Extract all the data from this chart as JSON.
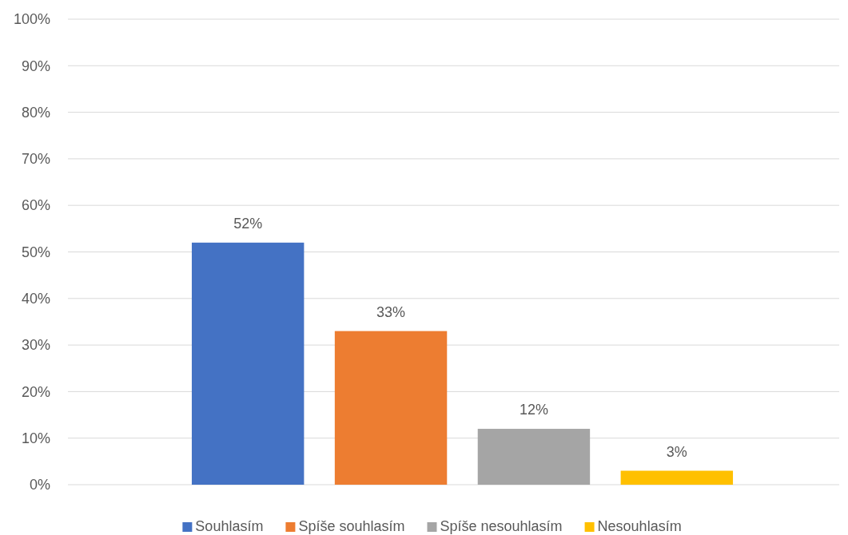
{
  "chart_data": {
    "type": "bar",
    "categories": [
      null
    ],
    "series": [
      {
        "name": "Souhlasím",
        "color": "#4472c4",
        "values": [
          52
        ],
        "value_labels": [
          "52%"
        ]
      },
      {
        "name": "Spíše souhlasím",
        "color": "#ed7d31",
        "values": [
          33
        ],
        "value_labels": [
          "33%"
        ]
      },
      {
        "name": "Spíše nesouhlasím",
        "color": "#a5a5a5",
        "values": [
          12
        ],
        "value_labels": [
          "12%"
        ]
      },
      {
        "name": "Nesouhlasím",
        "color": "#ffc000",
        "values": [
          3
        ],
        "value_labels": [
          "3%"
        ]
      }
    ],
    "ylim": [
      0,
      100
    ],
    "yticks": [
      {
        "value": 0,
        "label": "0%"
      },
      {
        "value": 10,
        "label": "10%"
      },
      {
        "value": 20,
        "label": "20%"
      },
      {
        "value": 30,
        "label": "30%"
      },
      {
        "value": 40,
        "label": "40%"
      },
      {
        "value": 50,
        "label": "50%"
      },
      {
        "value": 60,
        "label": "60%"
      },
      {
        "value": 70,
        "label": "70%"
      },
      {
        "value": 80,
        "label": "80%"
      },
      {
        "value": 90,
        "label": "90%"
      },
      {
        "value": 100,
        "label": "100%"
      }
    ],
    "grid": "y",
    "legend": "bottom"
  }
}
